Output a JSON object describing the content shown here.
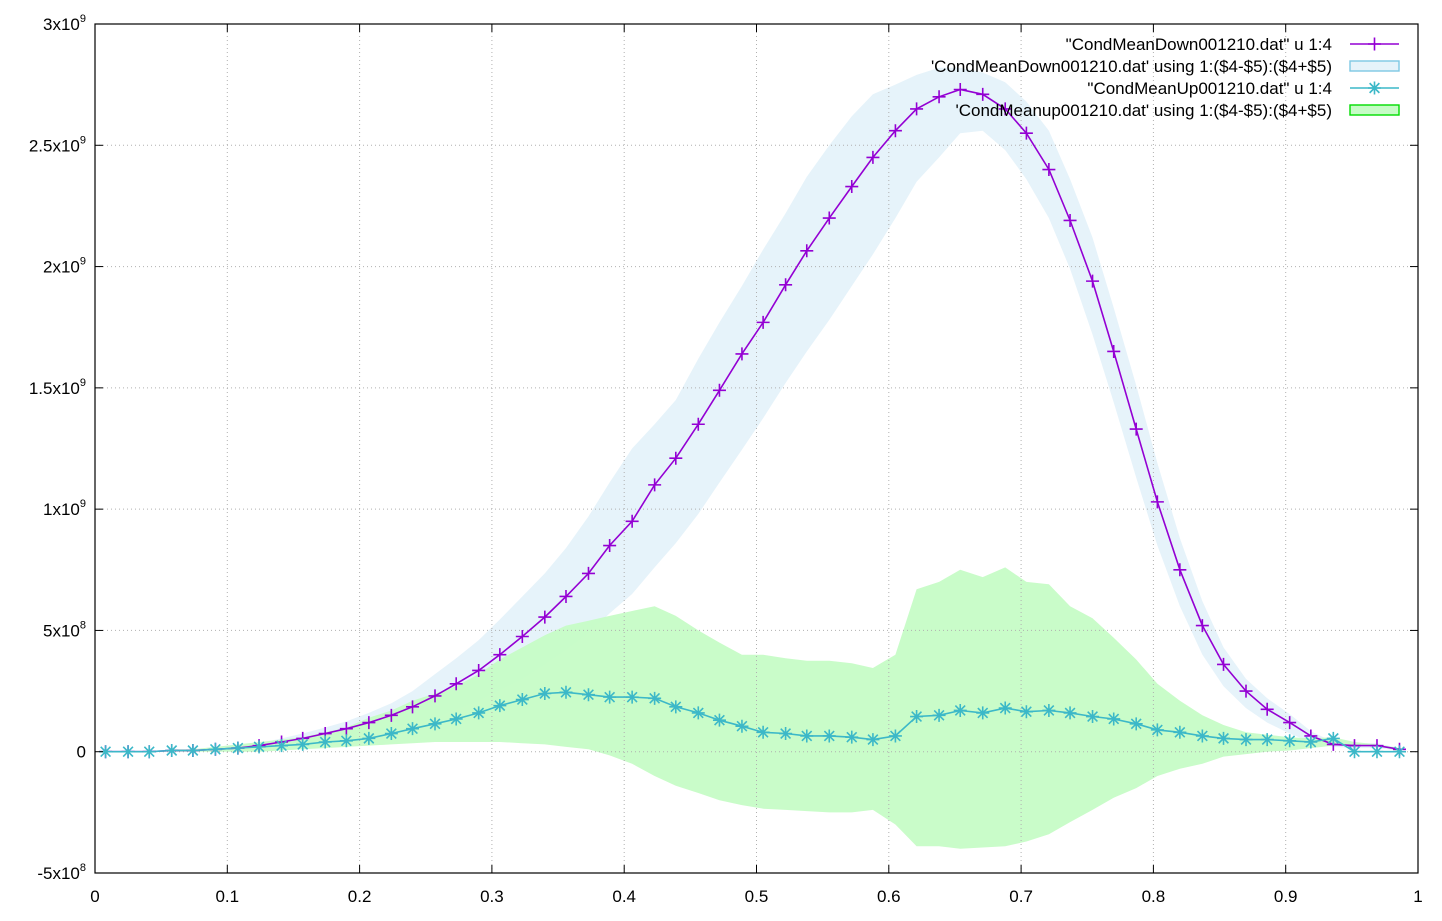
{
  "chart_data": {
    "type": "line",
    "grid": true,
    "xlim": [
      0,
      1
    ],
    "ylim": [
      -500000000,
      3000000000
    ],
    "x_ticks": [
      {
        "value": 0,
        "label": "0"
      },
      {
        "value": 0.1,
        "label": "0.1"
      },
      {
        "value": 0.2,
        "label": "0.2"
      },
      {
        "value": 0.3,
        "label": "0.3"
      },
      {
        "value": 0.4,
        "label": "0.4"
      },
      {
        "value": 0.5,
        "label": "0.5"
      },
      {
        "value": 0.6,
        "label": "0.6"
      },
      {
        "value": 0.7,
        "label": "0.7"
      },
      {
        "value": 0.8,
        "label": "0.8"
      },
      {
        "value": 0.9,
        "label": "0.9"
      },
      {
        "value": 1,
        "label": "1"
      }
    ],
    "y_ticks": [
      {
        "value": -500000000,
        "mantissa": "-5x10",
        "exp": "8"
      },
      {
        "value": 0,
        "mantissa": "0",
        "exp": ""
      },
      {
        "value": 500000000,
        "mantissa": "5x10",
        "exp": "8"
      },
      {
        "value": 1000000000,
        "mantissa": "1x10",
        "exp": "9"
      },
      {
        "value": 1500000000,
        "mantissa": "1.5x10",
        "exp": "9"
      },
      {
        "value": 2000000000,
        "mantissa": "2x10",
        "exp": "9"
      },
      {
        "value": 2500000000,
        "mantissa": "2.5x10",
        "exp": "9"
      },
      {
        "value": 3000000000,
        "mantissa": "3x10",
        "exp": "9"
      }
    ],
    "legend_position": "top-right",
    "colors": {
      "down_line": "#9400D3",
      "down_band": "#E6F3FA",
      "down_band_border": "#7EC8E3",
      "up_line": "#3CB8C8",
      "up_band": "#C6FCC6",
      "up_band_border": "#00DD00"
    },
    "legend": [
      {
        "label": "\"CondMeanDown001210.dat\" u 1:4",
        "kind": "line-plus",
        "series": "down"
      },
      {
        "label": "'CondMeanDown001210.dat' using 1:($4-$5):($4+$5)",
        "kind": "band",
        "series": "down_band"
      },
      {
        "label": "\"CondMeanUp001210.dat\" u 1:4",
        "kind": "line-star",
        "series": "up"
      },
      {
        "label": "'CondMeanup001210.dat' using 1:($4-$5):($4+$5)",
        "kind": "band",
        "series": "up_band"
      }
    ],
    "x": [
      0.008,
      0.025,
      0.041,
      0.058,
      0.074,
      0.091,
      0.108,
      0.124,
      0.141,
      0.157,
      0.174,
      0.19,
      0.207,
      0.224,
      0.24,
      0.257,
      0.273,
      0.29,
      0.306,
      0.323,
      0.34,
      0.356,
      0.373,
      0.389,
      0.406,
      0.423,
      0.439,
      0.456,
      0.472,
      0.489,
      0.505,
      0.522,
      0.538,
      0.555,
      0.572,
      0.588,
      0.605,
      0.621,
      0.638,
      0.654,
      0.671,
      0.688,
      0.704,
      0.721,
      0.737,
      0.754,
      0.77,
      0.787,
      0.803,
      0.82,
      0.837,
      0.853,
      0.87,
      0.886,
      0.903,
      0.919,
      0.936,
      0.952,
      0.969,
      0.986
    ],
    "series": [
      {
        "name": "\"CondMeanDown001210.dat\" u 1:4",
        "values": [
          0,
          0,
          0,
          5000000,
          5000000,
          10000000,
          15000000,
          25000000,
          40000000,
          55000000,
          75000000,
          95000000,
          120000000,
          150000000,
          185000000,
          230000000,
          280000000,
          335000000,
          400000000,
          475000000,
          555000000,
          640000000,
          735000000,
          850000000,
          950000000,
          1100000000,
          1210000000,
          1350000000,
          1490000000,
          1640000000,
          1770000000,
          1925000000,
          2065000000,
          2200000000,
          2330000000,
          2450000000,
          2560000000,
          2650000000,
          2700000000,
          2730000000,
          2710000000,
          2650000000,
          2550000000,
          2400000000,
          2190000000,
          1940000000,
          1650000000,
          1330000000,
          1030000000,
          750000000,
          520000000,
          360000000,
          250000000,
          175000000,
          120000000,
          65000000,
          30000000,
          25000000,
          25000000,
          10000000
        ],
        "lower": [
          0,
          0,
          0,
          5000000,
          5000000,
          8000000,
          10000000,
          15000000,
          25000000,
          35000000,
          50000000,
          65000000,
          80000000,
          100000000,
          120000000,
          140000000,
          175000000,
          210000000,
          255000000,
          300000000,
          360000000,
          420000000,
          490000000,
          570000000,
          650000000,
          760000000,
          860000000,
          980000000,
          1110000000,
          1245000000,
          1375000000,
          1520000000,
          1650000000,
          1780000000,
          1920000000,
          2050000000,
          2200000000,
          2350000000,
          2450000000,
          2550000000,
          2560000000,
          2480000000,
          2360000000,
          2200000000,
          1990000000,
          1720000000,
          1440000000,
          1130000000,
          850000000,
          600000000,
          400000000,
          270000000,
          180000000,
          120000000,
          75000000,
          40000000,
          20000000,
          15000000,
          15000000,
          5000000
        ],
        "upper": [
          0,
          0,
          0,
          5000000,
          5000000,
          12000000,
          20000000,
          35000000,
          55000000,
          75000000,
          100000000,
          125000000,
          160000000,
          200000000,
          250000000,
          320000000,
          385000000,
          460000000,
          545000000,
          640000000,
          735000000,
          840000000,
          970000000,
          1110000000,
          1250000000,
          1350000000,
          1450000000,
          1620000000,
          1770000000,
          1920000000,
          2070000000,
          2220000000,
          2370000000,
          2500000000,
          2620000000,
          2710000000,
          2750000000,
          2790000000,
          2820000000,
          2820000000,
          2800000000,
          2760000000,
          2680000000,
          2560000000,
          2360000000,
          2120000000,
          1830000000,
          1510000000,
          1190000000,
          880000000,
          620000000,
          430000000,
          300000000,
          220000000,
          155000000,
          85000000,
          40000000,
          35000000,
          35000000,
          15000000
        ]
      },
      {
        "name": "\"CondMeanUp001210.dat\" u 1:4",
        "values": [
          0,
          0,
          0,
          5000000,
          5000000,
          10000000,
          15000000,
          20000000,
          25000000,
          30000000,
          40000000,
          45000000,
          55000000,
          75000000,
          95000000,
          115000000,
          135000000,
          160000000,
          190000000,
          215000000,
          240000000,
          245000000,
          235000000,
          225000000,
          225000000,
          220000000,
          185000000,
          160000000,
          130000000,
          105000000,
          80000000,
          75000000,
          65000000,
          65000000,
          60000000,
          50000000,
          65000000,
          145000000,
          150000000,
          170000000,
          160000000,
          180000000,
          165000000,
          170000000,
          160000000,
          145000000,
          135000000,
          115000000,
          90000000,
          80000000,
          65000000,
          55000000,
          50000000,
          50000000,
          45000000,
          40000000,
          55000000,
          0,
          0,
          0
        ],
        "lower": [
          0,
          0,
          0,
          0,
          0,
          0,
          0,
          0,
          5000000,
          10000000,
          15000000,
          20000000,
          25000000,
          30000000,
          35000000,
          40000000,
          40000000,
          40000000,
          40000000,
          35000000,
          30000000,
          20000000,
          10000000,
          -15000000,
          -50000000,
          -100000000,
          -140000000,
          -170000000,
          -200000000,
          -220000000,
          -235000000,
          -240000000,
          -245000000,
          -250000000,
          -250000000,
          -240000000,
          -300000000,
          -390000000,
          -390000000,
          -400000000,
          -395000000,
          -390000000,
          -370000000,
          -340000000,
          -290000000,
          -240000000,
          -190000000,
          -150000000,
          -100000000,
          -70000000,
          -50000000,
          -20000000,
          -10000000,
          0,
          5000000,
          15000000,
          25000000,
          25000000,
          25000000,
          0
        ],
        "upper": [
          0,
          0,
          0,
          10000000,
          10000000,
          20000000,
          30000000,
          40000000,
          50000000,
          60000000,
          80000000,
          100000000,
          140000000,
          170000000,
          210000000,
          240000000,
          270000000,
          320000000,
          380000000,
          430000000,
          480000000,
          520000000,
          540000000,
          560000000,
          580000000,
          600000000,
          560000000,
          500000000,
          450000000,
          400000000,
          400000000,
          385000000,
          375000000,
          375000000,
          365000000,
          345000000,
          400000000,
          670000000,
          700000000,
          750000000,
          720000000,
          760000000,
          700000000,
          690000000,
          600000000,
          550000000,
          470000000,
          380000000,
          280000000,
          210000000,
          150000000,
          110000000,
          80000000,
          70000000,
          60000000,
          55000000,
          60000000,
          40000000,
          30000000,
          15000000
        ]
      }
    ]
  }
}
